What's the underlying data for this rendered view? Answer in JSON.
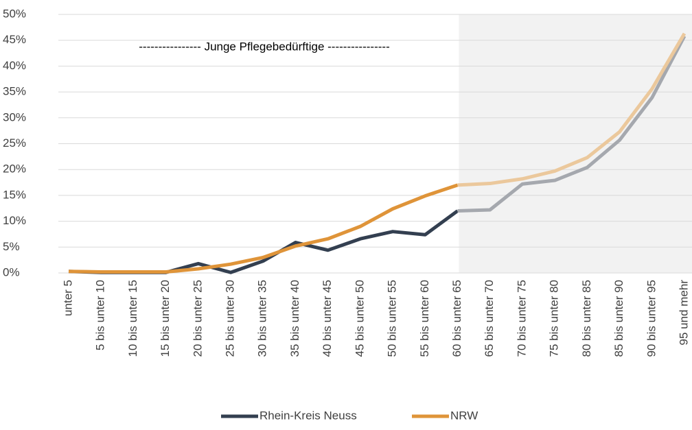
{
  "chart_data": {
    "type": "line",
    "annotation": "----------------  Junge Pflegebedürftige  ----------------",
    "categories": [
      "unter 5",
      "5 bis unter 10",
      "10 bis unter 15",
      "15 bis unter 20",
      "20 bis unter 25",
      "25 bis unter 30",
      "30 bis unter 35",
      "35 bis unter 40",
      "40 bis unter 45",
      "45 bis unter 50",
      "50 bis unter 55",
      "55 bis unter 60",
      "60 bis unter 65",
      "65 bis unter 70",
      "70 bis unter 75",
      "75 bis unter 80",
      "80 bis unter 85",
      "85 bis unter 90",
      "90 bis unter 95",
      "95 und mehr"
    ],
    "series": [
      {
        "name": "Rhein-Kreis Neuss",
        "color": "#333f50",
        "faded_color": "#a5a8ae",
        "values": [
          0.3,
          0.1,
          0.1,
          0.1,
          1.8,
          0.1,
          2.3,
          5.9,
          4.4,
          6.6,
          8.0,
          7.4,
          12.0,
          12.2,
          17.2,
          17.9,
          20.4,
          25.7,
          33.9,
          45.8
        ]
      },
      {
        "name": "NRW",
        "color": "#df9439",
        "faded_color": "#ebc89c",
        "values": [
          0.3,
          0.2,
          0.2,
          0.2,
          0.8,
          1.7,
          3.0,
          5.2,
          6.6,
          9.0,
          12.4,
          14.9,
          17.0,
          17.3,
          18.2,
          19.7,
          22.3,
          27.3,
          35.6,
          46.3
        ]
      }
    ],
    "ylim": [
      0,
      50
    ],
    "yticks": [
      {
        "value": 0,
        "label": "0%"
      },
      {
        "value": 5,
        "label": "5%"
      },
      {
        "value": 10,
        "label": "10%"
      },
      {
        "value": 15,
        "label": "15%"
      },
      {
        "value": 20,
        "label": "20%"
      },
      {
        "value": 25,
        "label": "25%"
      },
      {
        "value": 30,
        "label": "30%"
      },
      {
        "value": 35,
        "label": "35%"
      },
      {
        "value": 40,
        "label": "40%"
      },
      {
        "value": 45,
        "label": "45%"
      },
      {
        "value": 50,
        "label": "50%"
      }
    ],
    "grid": true,
    "legend": "bottom"
  }
}
